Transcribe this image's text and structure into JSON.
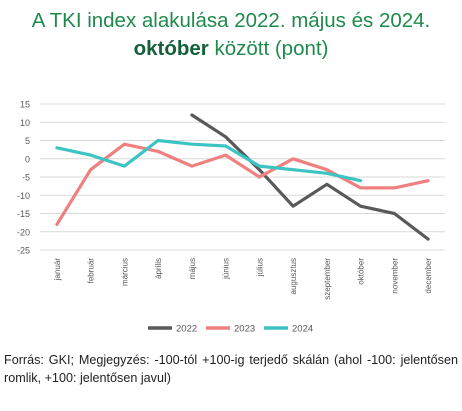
{
  "title": {
    "line1": "A TKI index alakulása 2022. május és 2024.",
    "line2_accent": "október",
    "line2_rest": " között (pont)"
  },
  "chart_data": {
    "type": "line",
    "categories": [
      "január",
      "február",
      "március",
      "április",
      "május",
      "június",
      "július",
      "augusztus",
      "szeptember",
      "október",
      "november",
      "december"
    ],
    "ylim": [
      -25,
      15
    ],
    "yticks": [
      15,
      10,
      5,
      0,
      -5,
      -10,
      -15,
      -20,
      -25
    ],
    "grid": "horizontal",
    "legend": "bottom",
    "series": [
      {
        "name": "2022",
        "color": "#595959",
        "values": [
          null,
          null,
          null,
          null,
          12,
          6,
          -3,
          -13,
          -7,
          -13,
          -15,
          -22
        ]
      },
      {
        "name": "2023",
        "color": "#f08080",
        "values": [
          -18,
          -3,
          4,
          2,
          -2,
          1,
          -5,
          0,
          -3,
          -8,
          -8,
          -6
        ]
      },
      {
        "name": "2024",
        "color": "#3cc3c3",
        "values": [
          3,
          1,
          -2,
          5,
          4,
          3.5,
          -2,
          -3,
          -4,
          -6,
          null,
          null
        ]
      }
    ]
  },
  "source": "Forrás: GKI; Megjegyzés: -100-tól +100-ig terjedő skálán (ahol -100: jelentősen romlik, +100: jelentősen javul)"
}
